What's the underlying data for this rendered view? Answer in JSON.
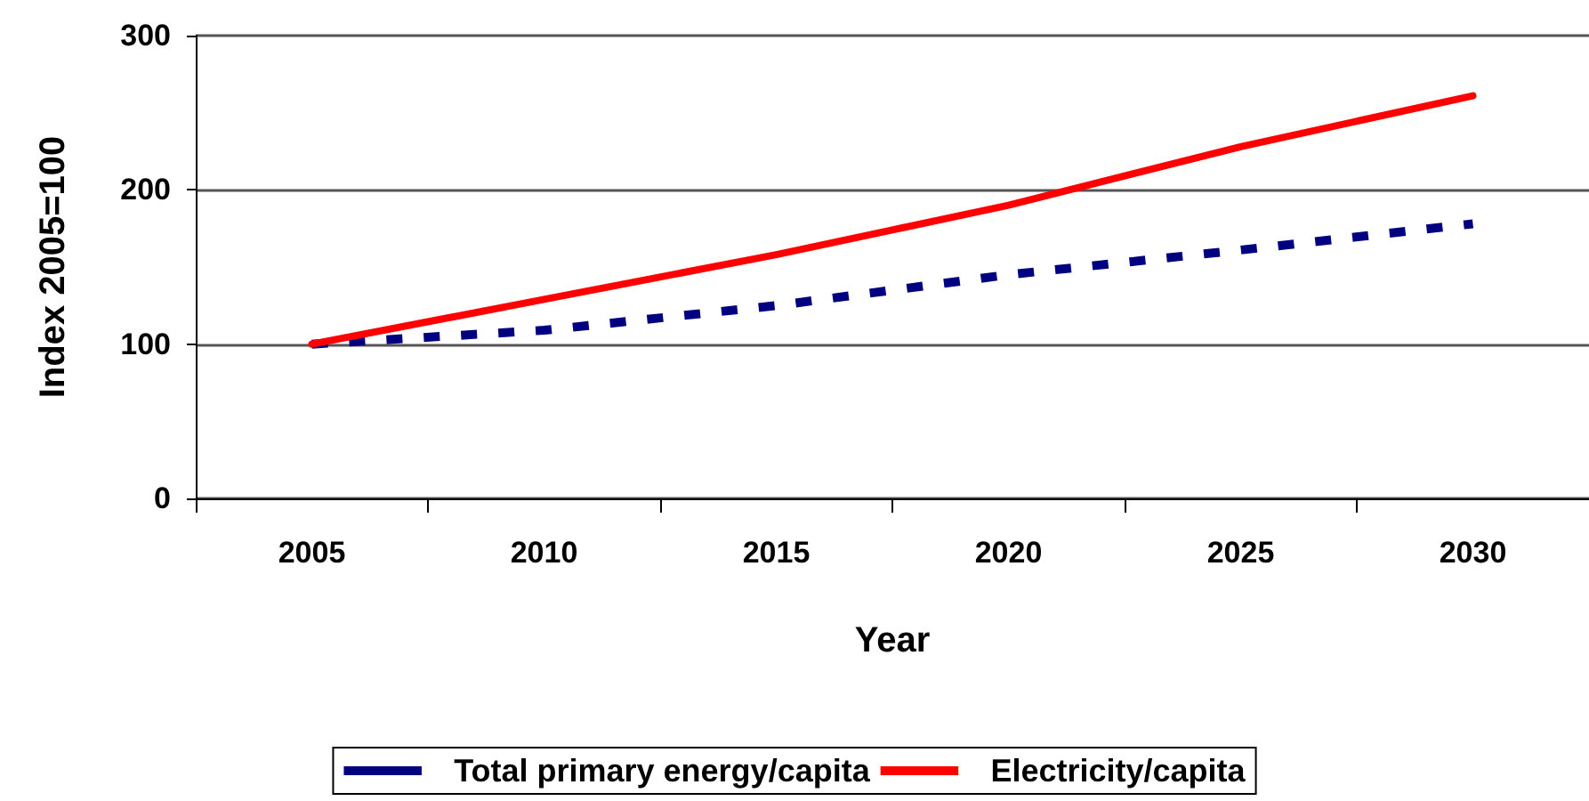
{
  "chart_data": {
    "type": "line",
    "xlabel": "Year",
    "ylabel": "Index 2005=100",
    "categories": [
      "2005",
      "2010",
      "2015",
      "2020",
      "2025",
      "2030"
    ],
    "series": [
      {
        "name": "Total primary energy/capita",
        "color": "#000080",
        "line_style": "dashed",
        "values": [
          100,
          109,
          125,
          145,
          161,
          178
        ]
      },
      {
        "name": "Electricity/capita",
        "color": "#ff0000",
        "line_style": "solid",
        "values": [
          100,
          129,
          158,
          190,
          228,
          261
        ]
      }
    ],
    "ylim": [
      0,
      300
    ],
    "yticks": [
      0,
      100,
      200,
      300
    ],
    "grid": "y",
    "legend": "bottom",
    "marker": "none"
  }
}
